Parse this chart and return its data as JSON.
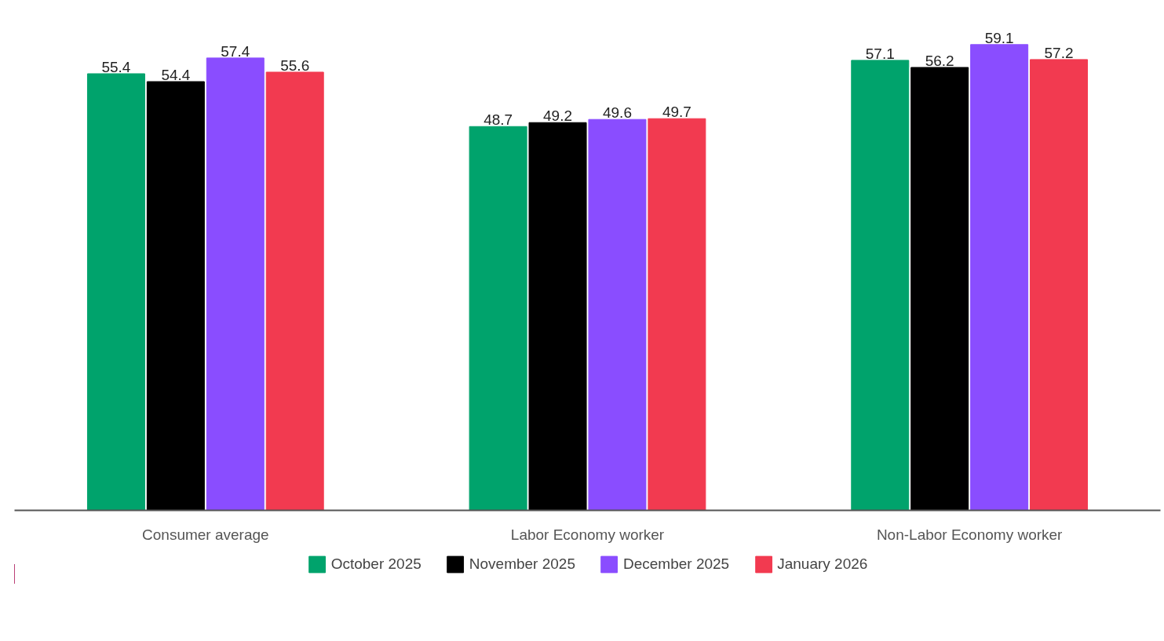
{
  "chart_data": {
    "type": "bar",
    "categories": [
      "Consumer average",
      "Labor Economy worker",
      "Non-Labor Economy worker"
    ],
    "series": [
      {
        "name": "October 2025",
        "color": "#00a36c",
        "values": [
          55.4,
          48.7,
          57.1
        ]
      },
      {
        "name": "November 2025",
        "color": "#000000",
        "values": [
          54.4,
          49.2,
          56.2
        ]
      },
      {
        "name": "December 2025",
        "color": "#8a4dff",
        "values": [
          57.4,
          49.6,
          59.1
        ]
      },
      {
        "name": "January 2026",
        "color": "#f23a50",
        "values": [
          55.6,
          49.7,
          57.2
        ]
      }
    ],
    "legend": "bottom",
    "data_labels": true,
    "tick_labels": "x"
  }
}
